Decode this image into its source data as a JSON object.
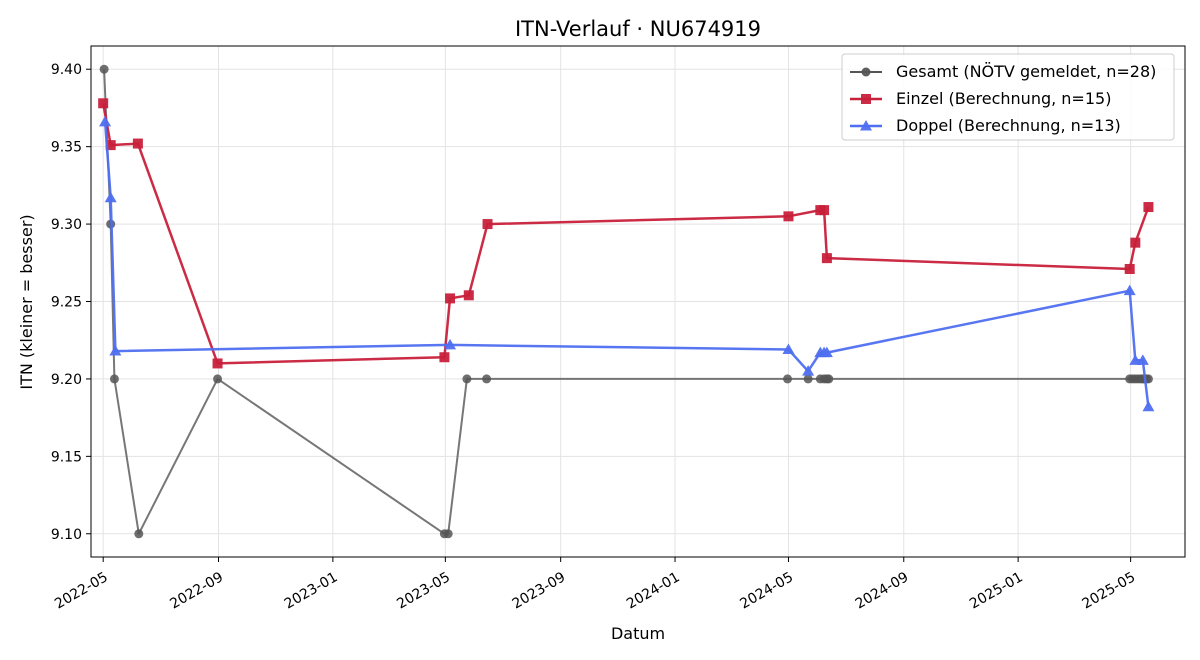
{
  "chart_data": {
    "type": "line",
    "title": "ITN-Verlauf · NU674919",
    "xlabel": "Datum",
    "ylabel": "ITN  (kleiner = besser)",
    "xlim": [
      "2022-04-18",
      "2025-06-28"
    ],
    "ylim": [
      9.085,
      9.415
    ],
    "grid": true,
    "legend_position": "top-right",
    "x_ticks": [
      "2022-05-01",
      "2022-09-01",
      "2023-01-01",
      "2023-05-01",
      "2023-09-01",
      "2024-01-01",
      "2024-05-01",
      "2024-09-01",
      "2025-01-01",
      "2025-05-01"
    ],
    "x_tick_labels": [
      "2022-05",
      "2022-09",
      "2023-01",
      "2023-05",
      "2023-09",
      "2024-01",
      "2024-05",
      "2024-09",
      "2025-01",
      "2025-05"
    ],
    "y_ticks": [
      9.1,
      9.15,
      9.2,
      9.25,
      9.3,
      9.35,
      9.4
    ],
    "y_tick_labels": [
      "9.10",
      "9.15",
      "9.20",
      "9.25",
      "9.30",
      "9.35",
      "9.40"
    ],
    "series": [
      {
        "name": "Gesamt (NÖTV gemeldet, n=28)",
        "color": "#555555",
        "marker": "circle",
        "x": [
          "2022-05-02",
          "2022-05-09",
          "2022-05-13",
          "2022-06-08",
          "2022-08-31",
          "2023-04-30",
          "2023-05-04",
          "2023-05-24",
          "2023-06-14",
          "2024-04-30",
          "2024-05-22",
          "2024-06-04",
          "2024-06-08",
          "2024-06-11",
          "2024-06-13",
          "2025-04-30",
          "2025-05-03",
          "2025-05-06",
          "2025-05-09",
          "2025-05-12",
          "2025-05-14",
          "2025-05-16",
          "2025-05-18",
          "2025-05-20"
        ],
        "y": [
          9.4,
          9.3,
          9.2,
          9.1,
          9.2,
          9.1,
          9.1,
          9.2,
          9.2,
          9.2,
          9.2,
          9.2,
          9.2,
          9.2,
          9.2,
          9.2,
          9.2,
          9.2,
          9.2,
          9.2,
          9.2,
          9.2,
          9.2,
          9.2
        ]
      },
      {
        "name": "Einzel (Berechnung, n=15)",
        "color": "#c8203a",
        "marker": "square",
        "x": [
          "2022-05-01",
          "2022-05-09",
          "2022-06-07",
          "2022-08-31",
          "2023-04-30",
          "2023-05-06",
          "2023-05-26",
          "2023-06-15",
          "2024-05-01",
          "2024-06-04",
          "2024-06-08",
          "2024-06-11",
          "2025-04-30",
          "2025-05-06",
          "2025-05-20"
        ],
        "y": [
          9.378,
          9.351,
          9.352,
          9.21,
          9.214,
          9.252,
          9.254,
          9.3,
          9.305,
          9.309,
          9.309,
          9.278,
          9.271,
          9.288,
          9.311
        ]
      },
      {
        "name": "Doppel (Berechnung, n=13)",
        "color": "#4f6ff0",
        "marker": "triangle",
        "x": [
          "2022-05-03",
          "2022-05-09",
          "2022-05-14",
          "2023-05-06",
          "2024-05-01",
          "2024-05-22",
          "2024-06-04",
          "2024-06-08",
          "2024-06-11",
          "2025-04-30",
          "2025-05-06",
          "2025-05-14",
          "2025-05-20"
        ],
        "y": [
          9.366,
          9.317,
          9.218,
          9.222,
          9.219,
          9.205,
          9.217,
          9.217,
          9.217,
          9.257,
          9.212,
          9.212,
          9.182
        ]
      }
    ]
  }
}
